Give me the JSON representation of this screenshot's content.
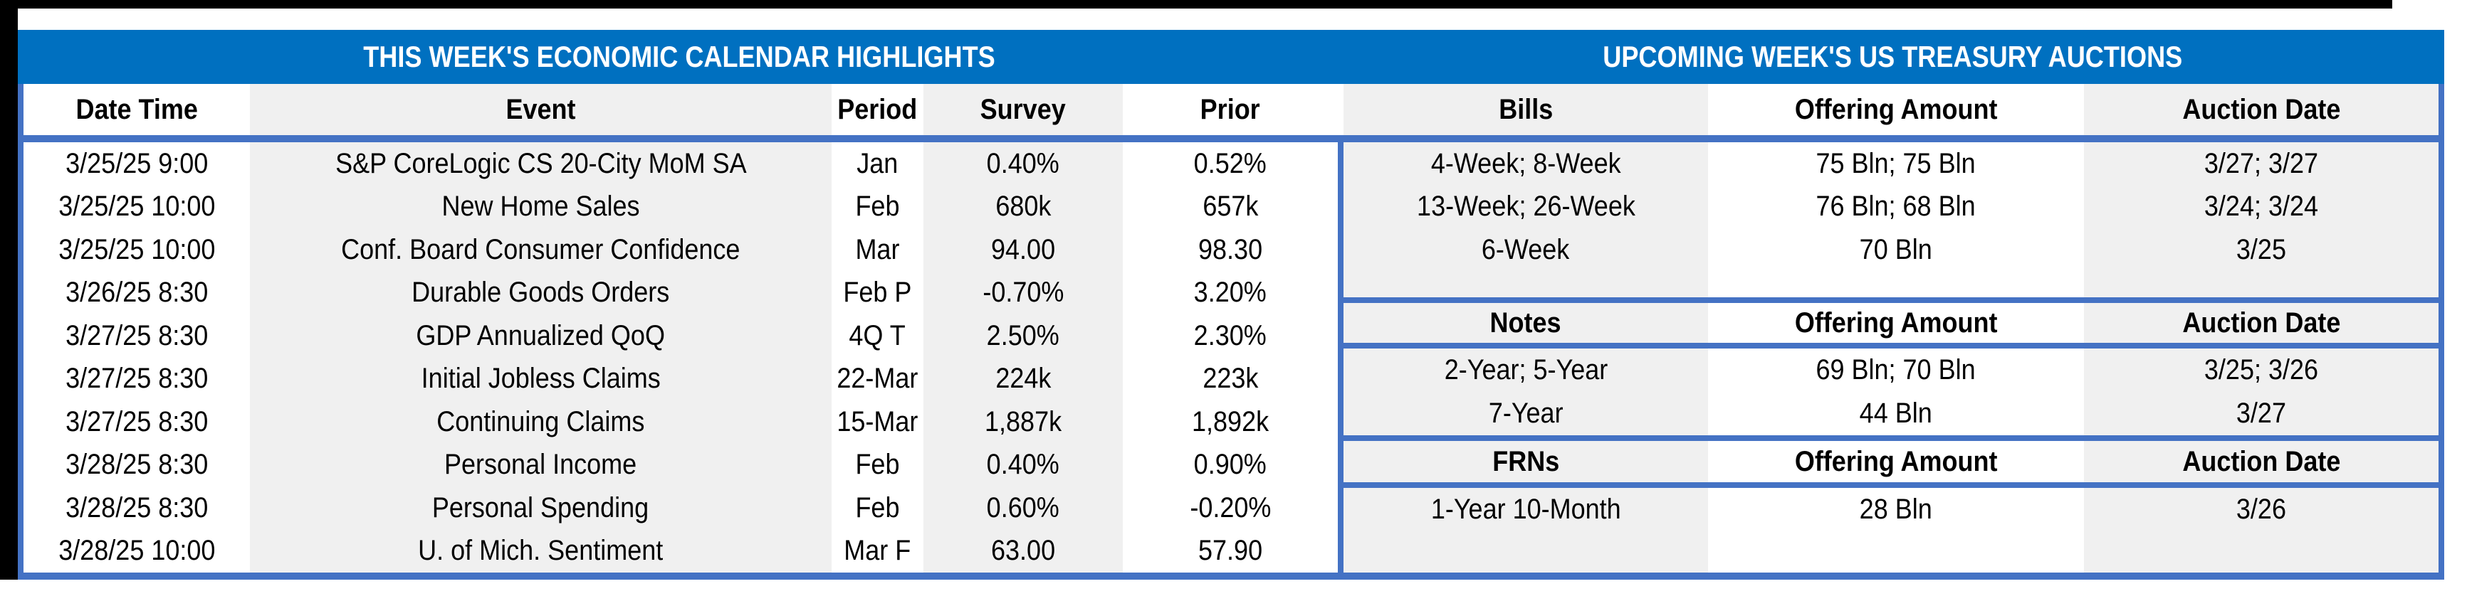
{
  "colors": {
    "band_blue": "#0070C0",
    "border_blue": "#4472C4",
    "column_gray": "#F0F0F0",
    "frame_black": "#000000"
  },
  "left_table": {
    "title": "THIS WEEK'S ECONOMIC CALENDAR HIGHLIGHTS",
    "columns": [
      "Date Time",
      "Event",
      "Period",
      "Survey",
      "Prior"
    ],
    "rows": [
      [
        "3/25/25 9:00",
        "S&P CoreLogic CS 20-City MoM SA",
        "Jan",
        "0.40%",
        "0.52%"
      ],
      [
        "3/25/25 10:00",
        "New Home Sales",
        "Feb",
        "680k",
        "657k"
      ],
      [
        "3/25/25 10:00",
        "Conf. Board Consumer Confidence",
        "Mar",
        "94.00",
        "98.30"
      ],
      [
        "3/26/25 8:30",
        "Durable Goods Orders",
        "Feb P",
        "-0.70%",
        "3.20%"
      ],
      [
        "3/27/25 8:30",
        "GDP Annualized QoQ",
        "4Q T",
        "2.50%",
        "2.30%"
      ],
      [
        "3/27/25 8:30",
        "Initial Jobless Claims",
        "22-Mar",
        "224k",
        "223k"
      ],
      [
        "3/27/25 8:30",
        "Continuing Claims",
        "15-Mar",
        "1,887k",
        "1,892k"
      ],
      [
        "3/28/25 8:30",
        "Personal Income",
        "Feb",
        "0.40%",
        "0.90%"
      ],
      [
        "3/28/25 8:30",
        "Personal Spending",
        "Feb",
        "0.60%",
        "-0.20%"
      ],
      [
        "3/28/25 10:00",
        "U. of Mich. Sentiment",
        "Mar F",
        "63.00",
        "57.90"
      ]
    ]
  },
  "right_table": {
    "title": "UPCOMING WEEK'S US TREASURY AUCTIONS",
    "sections": [
      {
        "columns": [
          "Bills",
          "Offering Amount",
          "Auction Date"
        ],
        "rows": [
          [
            "4-Week; 8-Week",
            "75 Bln; 75 Bln",
            "3/27; 3/27"
          ],
          [
            "13-Week; 26-Week",
            "76 Bln; 68 Bln",
            "3/24; 3/24"
          ],
          [
            "6-Week",
            "70 Bln",
            "3/25"
          ]
        ]
      },
      {
        "columns": [
          "Notes",
          "Offering Amount",
          "Auction Date"
        ],
        "rows": [
          [
            "2-Year; 5-Year",
            "69 Bln; 70 Bln",
            "3/25; 3/26"
          ],
          [
            "7-Year",
            "44 Bln",
            "3/27"
          ]
        ]
      },
      {
        "columns": [
          "FRNs",
          "Offering Amount",
          "Auction Date"
        ],
        "rows": [
          [
            "1-Year 10-Month",
            "28 Bln",
            "3/26"
          ]
        ]
      }
    ]
  }
}
